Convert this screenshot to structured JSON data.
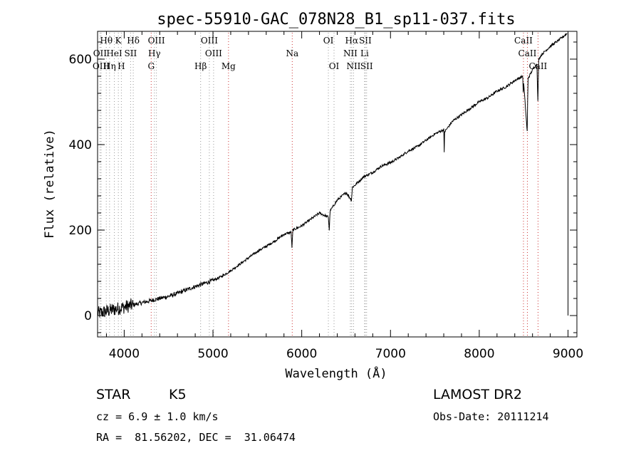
{
  "chart_data": {
    "type": "line",
    "title": "spec-55910-GAC_078N28_B1_sp11-037.fits",
    "xlabel": "Wavelength (Å)",
    "ylabel": "Flux (relative)",
    "xlim": [
      3700,
      9100
    ],
    "ylim": [
      -50,
      665
    ],
    "xticks": [
      4000,
      5000,
      6000,
      7000,
      8000,
      9000
    ],
    "yticks": [
      0,
      200,
      400,
      600
    ],
    "grid": false,
    "series": [
      {
        "name": "flux",
        "x": [
          3700,
          3800,
          3900,
          4000,
          4100,
          4200,
          4300,
          4400,
          4500,
          4600,
          4700,
          4800,
          4900,
          5000,
          5100,
          5200,
          5300,
          5400,
          5500,
          5600,
          5700,
          5800,
          5880,
          5890,
          5900,
          6000,
          6100,
          6200,
          6300,
          6310,
          6320,
          6400,
          6500,
          6560,
          6570,
          6600,
          6700,
          6800,
          6900,
          7000,
          7100,
          7200,
          7300,
          7400,
          7500,
          7600,
          7605,
          7610,
          7700,
          7800,
          7900,
          8000,
          8100,
          8200,
          8300,
          8400,
          8490,
          8495,
          8500,
          8540,
          8545,
          8550,
          8600,
          8650,
          8660,
          8670,
          8700,
          8800,
          8900,
          8990
        ],
        "y": [
          5,
          10,
          15,
          20,
          25,
          30,
          35,
          40,
          45,
          52,
          60,
          68,
          75,
          82,
          92,
          105,
          120,
          135,
          150,
          162,
          175,
          190,
          195,
          160,
          200,
          210,
          225,
          240,
          230,
          200,
          245,
          270,
          288,
          270,
          300,
          305,
          325,
          335,
          350,
          358,
          370,
          385,
          395,
          410,
          425,
          435,
          380,
          430,
          455,
          470,
          485,
          500,
          510,
          525,
          535,
          550,
          560,
          520,
          545,
          430,
          500,
          555,
          575,
          590,
          500,
          600,
          610,
          630,
          645,
          660
        ]
      }
    ],
    "spectral_lines": [
      {
        "label": "Hθ",
        "wl": 3798,
        "row": 0,
        "color": "#999999"
      },
      {
        "label": "K",
        "wl": 3934,
        "row": 0,
        "color": "#999999"
      },
      {
        "label": "Hδ",
        "wl": 4102,
        "row": 0,
        "color": "#999999"
      },
      {
        "label": "OIII",
        "wl": 4363,
        "row": 0,
        "color": "#999999"
      },
      {
        "label": "OIII",
        "wl": 4959,
        "row": 0,
        "color": "#999999"
      },
      {
        "label": "OI",
        "wl": 6300,
        "row": 0,
        "color": "#999999"
      },
      {
        "label": "Hα",
        "wl": 6563,
        "row": 0,
        "color": "#999999"
      },
      {
        "label": "SII",
        "wl": 6716,
        "row": 0,
        "color": "#999999"
      },
      {
        "label": "CaII",
        "wl": 8498,
        "row": 0,
        "color": "#cc3333"
      },
      {
        "label": "OII",
        "wl": 3727,
        "row": 1,
        "color": "#999999"
      },
      {
        "label": "HeI",
        "wl": 3889,
        "row": 1,
        "color": "#999999"
      },
      {
        "label": "SII",
        "wl": 4072,
        "row": 1,
        "color": "#999999"
      },
      {
        "label": "Hγ",
        "wl": 4340,
        "row": 1,
        "color": "#999999"
      },
      {
        "label": "OIII",
        "wl": 5007,
        "row": 1,
        "color": "#999999"
      },
      {
        "label": "Na",
        "wl": 5893,
        "row": 1,
        "color": "#cc3333"
      },
      {
        "label": "NII",
        "wl": 6548,
        "row": 1,
        "color": "#999999"
      },
      {
        "label": "Li",
        "wl": 6708,
        "row": 1,
        "color": "#999999"
      },
      {
        "label": "CaII",
        "wl": 8542,
        "row": 1,
        "color": "#cc3333"
      },
      {
        "label": "OIII",
        "wl": 3740,
        "row": 2,
        "color": "#999999"
      },
      {
        "label": "Hη",
        "wl": 3835,
        "row": 2,
        "color": "#999999"
      },
      {
        "label": "H",
        "wl": 3968,
        "row": 2,
        "color": "#999999"
      },
      {
        "label": "G",
        "wl": 4304,
        "row": 2,
        "color": "#cc3333"
      },
      {
        "label": "Hβ",
        "wl": 4861,
        "row": 2,
        "color": "#999999"
      },
      {
        "label": "Mg",
        "wl": 5175,
        "row": 2,
        "color": "#cc3333"
      },
      {
        "label": "OI",
        "wl": 6364,
        "row": 2,
        "color": "#999999"
      },
      {
        "label": "NII",
        "wl": 6584,
        "row": 2,
        "color": "#999999"
      },
      {
        "label": "SII",
        "wl": 6731,
        "row": 2,
        "color": "#999999"
      },
      {
        "label": "CaII",
        "wl": 8662,
        "row": 2,
        "color": "#cc3333"
      }
    ]
  },
  "info": {
    "class": "STAR",
    "subclass": "K5",
    "survey": "LAMOST DR2",
    "cz": "cz = 6.9 ± 1.0 km/s",
    "obs_date": "Obs-Date: 20111214",
    "coords": "RA =  81.56202, DEC =  31.06474"
  }
}
